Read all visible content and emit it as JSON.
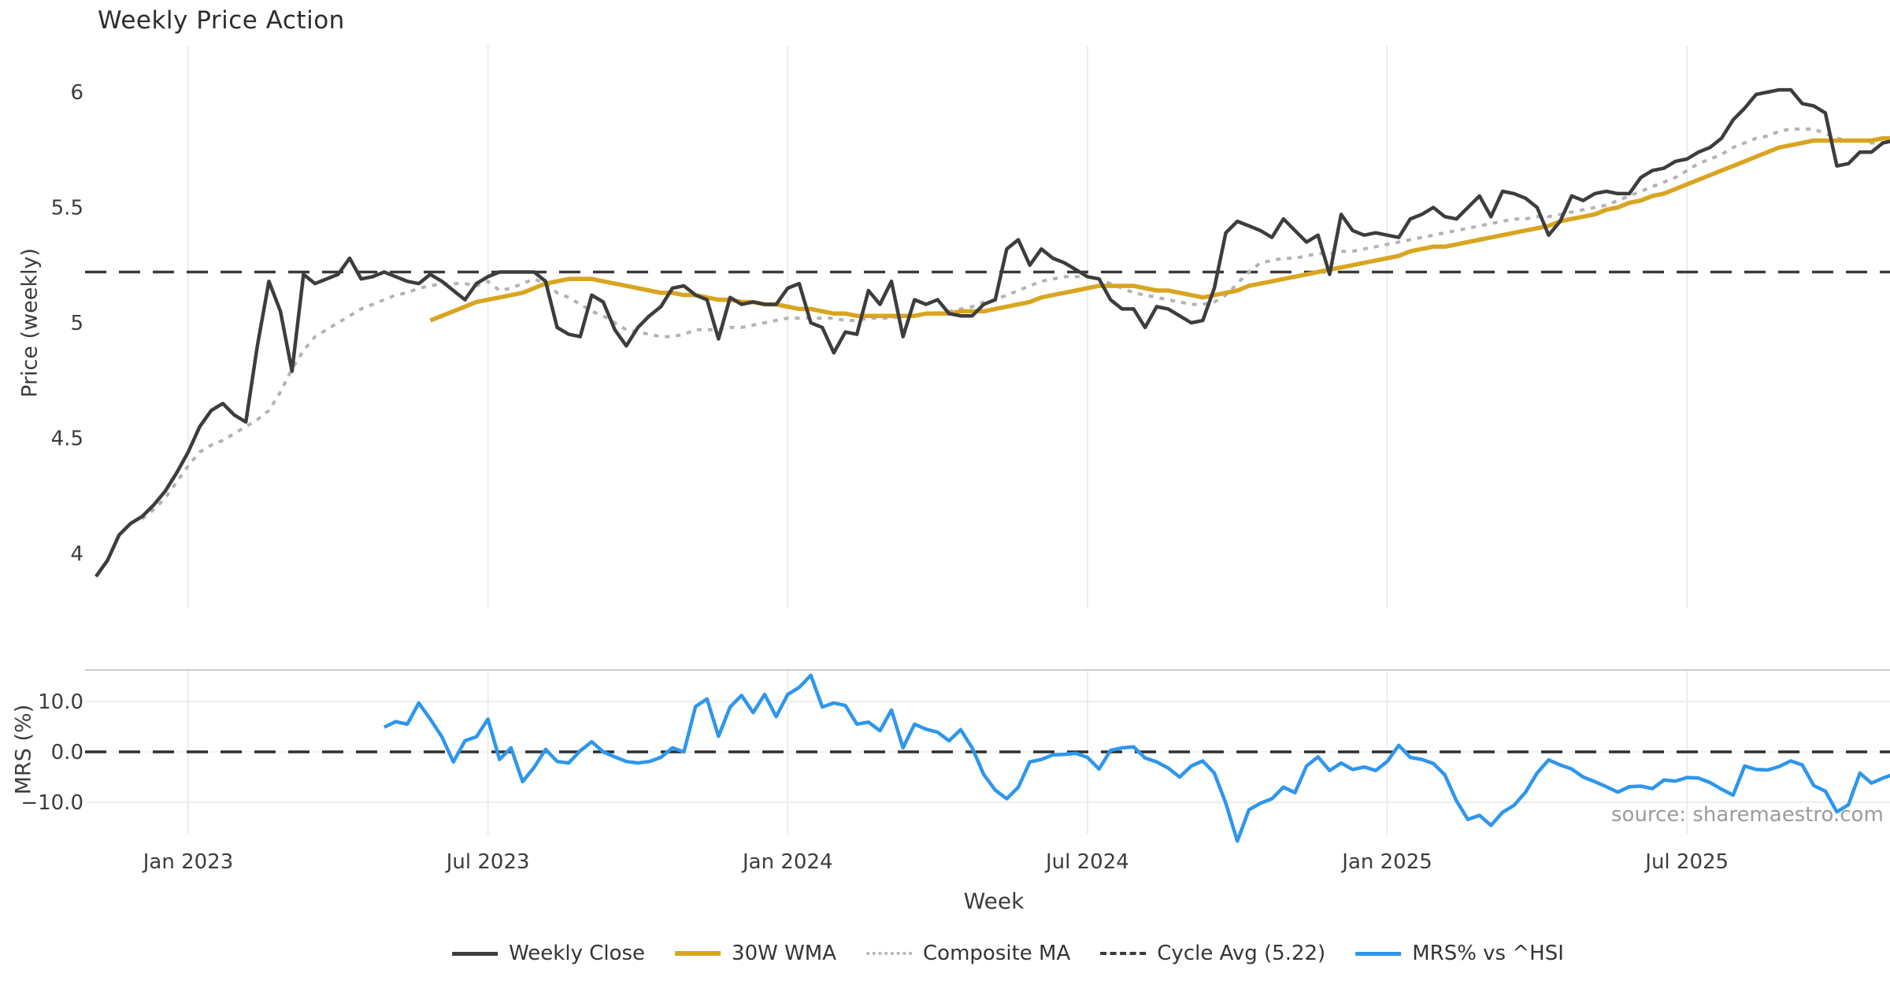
{
  "title": "Weekly Price Action",
  "source_note": "source: sharemaestro.com",
  "colors": {
    "close": "#3d3d3d",
    "wma": "#d9a521",
    "composite": "#b3b3b3",
    "cycle_avg": "#3a3a3a",
    "mrs": "#2e96ec",
    "grid": "#ebebf0",
    "hgrid": "#ececec",
    "spine": "#cccccc",
    "tick_text": "#3c3c3c"
  },
  "legend": {
    "items": [
      {
        "label": "Weekly Close",
        "color": "#3d3d3d",
        "style": "solid",
        "thickness": 5
      },
      {
        "label": "30W WMA",
        "color": "#d9a521",
        "style": "solid",
        "thickness": 6
      },
      {
        "label": "Composite MA",
        "color": "#b3b3b3",
        "style": "dotted",
        "thickness": 4
      },
      {
        "label": "Cycle Avg (5.22)",
        "color": "#3a3a3a",
        "style": "dashed",
        "thickness": 4
      },
      {
        "label": "MRS% vs ^HSI",
        "color": "#2e96ec",
        "style": "solid",
        "thickness": 5
      }
    ]
  },
  "chart_data": {
    "type": "line",
    "title": "Weekly Price Action",
    "x": {
      "label": "Week",
      "unit": "weekly index, week 0 = first plotted week (Nov 2022)",
      "tick_weeks": [
        8,
        34,
        60,
        86,
        112,
        138
      ],
      "tick_labels": [
        "Jan 2023",
        "Jul 2023",
        "Jan 2024",
        "Jul 2024",
        "Jan 2025",
        "Jul 2025"
      ],
      "weeks_total": 157
    },
    "panels": [
      {
        "ylabel": "Price (weekly)",
        "ylim": [
          3.8,
          6.12
        ],
        "yticks": [
          {
            "v": 4,
            "label": "4"
          },
          {
            "v": 4.5,
            "label": "4.5"
          },
          {
            "v": 5,
            "label": "5"
          },
          {
            "v": 5.5,
            "label": "5.5"
          },
          {
            "v": 6,
            "label": "6"
          }
        ],
        "grid": "vertical-only",
        "hline": {
          "name": "Cycle Avg",
          "value": 5.22,
          "style": "dashed"
        },
        "series": [
          {
            "name": "Weekly Close",
            "style": "solid",
            "color": "#3d3d3d",
            "values": [
              3.9,
              3.97,
              4.08,
              4.13,
              4.16,
              4.21,
              4.27,
              4.35,
              4.44,
              4.55,
              4.62,
              4.65,
              4.6,
              4.57,
              4.9,
              5.18,
              5.05,
              4.79,
              5.21,
              5.17,
              5.19,
              5.21,
              5.28,
              5.19,
              5.2,
              5.22,
              5.2,
              5.18,
              5.17,
              5.21,
              5.18,
              5.14,
              5.1,
              5.17,
              5.2,
              5.22,
              5.22,
              5.22,
              5.22,
              5.18,
              4.98,
              4.95,
              4.94,
              5.12,
              5.09,
              4.97,
              4.9,
              4.98,
              5.03,
              5.07,
              5.15,
              5.16,
              5.12,
              5.1,
              4.93,
              5.11,
              5.08,
              5.09,
              5.08,
              5.08,
              5.15,
              5.17,
              5.0,
              4.98,
              4.87,
              4.96,
              4.95,
              5.14,
              5.08,
              5.18,
              4.94,
              5.1,
              5.08,
              5.1,
              5.04,
              5.03,
              5.03,
              5.08,
              5.1,
              5.32,
              5.36,
              5.25,
              5.32,
              5.28,
              5.26,
              5.23,
              5.2,
              5.19,
              5.1,
              5.06,
              5.06,
              4.98,
              5.07,
              5.06,
              5.03,
              5.0,
              5.01,
              5.15,
              5.39,
              5.44,
              5.42,
              5.4,
              5.37,
              5.45,
              5.4,
              5.35,
              5.38,
              5.21,
              5.47,
              5.4,
              5.38,
              5.39,
              5.38,
              5.37,
              5.45,
              5.47,
              5.5,
              5.46,
              5.45,
              5.5,
              5.55,
              5.46,
              5.57,
              5.56,
              5.54,
              5.5,
              5.38,
              5.44,
              5.55,
              5.53,
              5.56,
              5.57,
              5.56,
              5.56,
              5.63,
              5.66,
              5.67,
              5.7,
              5.71,
              5.74,
              5.76,
              5.8,
              5.88,
              5.93,
              5.99,
              6.0,
              6.01,
              6.01,
              5.95,
              5.94,
              5.91,
              5.68,
              5.69,
              5.74,
              5.74,
              5.78,
              5.79
            ]
          },
          {
            "name": "30W WMA",
            "style": "solid",
            "color": "#d9a521",
            "values": [
              null,
              null,
              null,
              null,
              null,
              null,
              null,
              null,
              null,
              null,
              null,
              null,
              null,
              null,
              null,
              null,
              null,
              null,
              null,
              null,
              null,
              null,
              null,
              null,
              null,
              null,
              null,
              null,
              null,
              5.01,
              5.03,
              5.05,
              5.07,
              5.09,
              5.1,
              5.11,
              5.12,
              5.13,
              5.15,
              5.17,
              5.18,
              5.19,
              5.19,
              5.19,
              5.18,
              5.17,
              5.16,
              5.15,
              5.14,
              5.13,
              5.13,
              5.12,
              5.12,
              5.11,
              5.1,
              5.1,
              5.09,
              5.09,
              5.08,
              5.08,
              5.07,
              5.06,
              5.06,
              5.05,
              5.04,
              5.04,
              5.03,
              5.03,
              5.03,
              5.03,
              5.03,
              5.03,
              5.04,
              5.04,
              5.04,
              5.05,
              5.05,
              5.05,
              5.06,
              5.07,
              5.08,
              5.09,
              5.11,
              5.12,
              5.13,
              5.14,
              5.15,
              5.16,
              5.16,
              5.16,
              5.16,
              5.15,
              5.14,
              5.14,
              5.13,
              5.12,
              5.11,
              5.12,
              5.13,
              5.14,
              5.16,
              5.17,
              5.18,
              5.19,
              5.2,
              5.21,
              5.22,
              5.23,
              5.24,
              5.25,
              5.26,
              5.27,
              5.28,
              5.29,
              5.31,
              5.32,
              5.33,
              5.33,
              5.34,
              5.35,
              5.36,
              5.37,
              5.38,
              5.39,
              5.4,
              5.41,
              5.42,
              5.44,
              5.45,
              5.46,
              5.47,
              5.49,
              5.5,
              5.52,
              5.53,
              5.55,
              5.56,
              5.58,
              5.6,
              5.62,
              5.64,
              5.66,
              5.68,
              5.7,
              5.72,
              5.74,
              5.76,
              5.77,
              5.78,
              5.79,
              5.79,
              5.79,
              5.79,
              5.79,
              5.79,
              5.8,
              5.8
            ]
          },
          {
            "name": "Composite MA",
            "style": "dotted",
            "color": "#b3b3b3",
            "values": [
              null,
              null,
              null,
              null,
              4.15,
              4.19,
              4.24,
              4.31,
              4.38,
              4.44,
              4.47,
              4.49,
              4.52,
              4.55,
              4.58,
              4.62,
              4.7,
              4.8,
              4.88,
              4.94,
              4.97,
              5.0,
              5.03,
              5.06,
              5.08,
              5.1,
              5.12,
              5.13,
              5.15,
              5.16,
              5.17,
              5.17,
              5.17,
              5.16,
              5.18,
              5.14,
              5.15,
              5.17,
              5.19,
              5.17,
              5.13,
              5.11,
              5.08,
              5.05,
              5.03,
              5.0,
              4.97,
              4.96,
              4.95,
              4.94,
              4.94,
              4.95,
              4.97,
              4.97,
              4.97,
              4.98,
              4.98,
              4.99,
              5.0,
              5.01,
              5.02,
              5.02,
              5.02,
              5.02,
              5.02,
              5.01,
              5.01,
              5.02,
              5.02,
              5.02,
              5.03,
              5.03,
              5.04,
              5.04,
              5.05,
              5.06,
              5.07,
              5.09,
              5.1,
              5.12,
              5.14,
              5.16,
              5.18,
              5.19,
              5.2,
              5.2,
              5.2,
              5.19,
              5.17,
              5.15,
              5.13,
              5.12,
              5.11,
              5.1,
              5.09,
              5.08,
              5.08,
              5.09,
              5.12,
              5.17,
              5.22,
              5.26,
              5.27,
              5.28,
              5.28,
              5.29,
              5.3,
              5.3,
              5.31,
              5.31,
              5.32,
              5.33,
              5.34,
              5.35,
              5.36,
              5.37,
              5.38,
              5.39,
              5.4,
              5.41,
              5.42,
              5.43,
              5.44,
              5.45,
              5.45,
              5.46,
              5.46,
              5.47,
              5.48,
              5.49,
              5.5,
              5.51,
              5.53,
              5.55,
              5.57,
              5.59,
              5.61,
              5.63,
              5.66,
              5.69,
              5.71,
              5.73,
              5.76,
              5.78,
              5.8,
              5.81,
              5.83,
              5.84,
              5.84,
              5.84,
              5.82,
              5.8,
              5.79,
              5.79,
              5.78,
              5.78,
              5.79
            ]
          }
        ]
      },
      {
        "ylabel": "MRS (%)",
        "ylim": [
          -18.5,
          16.3
        ],
        "yticks": [
          {
            "v": 10,
            "label": "10.0"
          },
          {
            "v": 0,
            "label": "0.0"
          },
          {
            "v": -10,
            "label": "−10.0"
          }
        ],
        "grid": "horizontal-and-vertical",
        "hline": {
          "name": "zero",
          "value": 0,
          "style": "dashed"
        },
        "series": [
          {
            "name": "MRS% vs ^HSI",
            "style": "solid",
            "color": "#2e96ec",
            "values": [
              null,
              null,
              null,
              null,
              null,
              null,
              null,
              null,
              null,
              null,
              null,
              null,
              null,
              null,
              null,
              null,
              null,
              null,
              null,
              null,
              null,
              null,
              null,
              null,
              null,
              4.9,
              6.0,
              5.5,
              9.7,
              6.5,
              3.0,
              -2.0,
              2.2,
              3.0,
              6.5,
              -1.5,
              0.8,
              -5.9,
              -3.1,
              0.5,
              -1.9,
              -2.2,
              0.2,
              2.0,
              0.0,
              -1.0,
              -1.9,
              -2.2,
              -1.9,
              -1.1,
              0.8,
              0.0,
              9.0,
              10.5,
              3.1,
              8.9,
              11.2,
              7.8,
              11.4,
              7.0,
              11.4,
              12.8,
              15.2,
              8.9,
              9.7,
              9.2,
              5.5,
              5.9,
              4.2,
              8.3,
              0.8,
              5.5,
              4.5,
              3.9,
              2.2,
              4.4,
              0.8,
              -4.5,
              -7.6,
              -9.3,
              -7.0,
              -2.0,
              -1.5,
              -0.6,
              -0.5,
              -0.3,
              -1.1,
              -3.4,
              0.3,
              0.8,
              1.0,
              -1.2,
              -2.0,
              -3.2,
              -5.0,
              -2.8,
              -1.8,
              -4.2,
              -10.2,
              -17.7,
              -11.5,
              -10.2,
              -9.3,
              -7.0,
              -8.1,
              -2.8,
              -1.0,
              -3.7,
              -2.2,
              -3.5,
              -3.0,
              -3.7,
              -1.9,
              1.3,
              -1.1,
              -1.5,
              -2.3,
              -4.6,
              -9.7,
              -13.4,
              -12.6,
              -14.6,
              -12.0,
              -10.6,
              -8.0,
              -4.2,
              -1.6,
              -2.6,
              -3.4,
              -5.0,
              -5.9,
              -6.9,
              -8.0,
              -6.9,
              -6.8,
              -7.3,
              -5.6,
              -5.8,
              -5.1,
              -5.2,
              -6.1,
              -7.4,
              -8.6,
              -2.8,
              -3.5,
              -3.6,
              -2.9,
              -1.8,
              -2.6,
              -6.7,
              -7.8,
              -11.9,
              -10.5,
              -4.2,
              -6.2,
              -5.2,
              -4.4
            ]
          }
        ]
      }
    ]
  }
}
